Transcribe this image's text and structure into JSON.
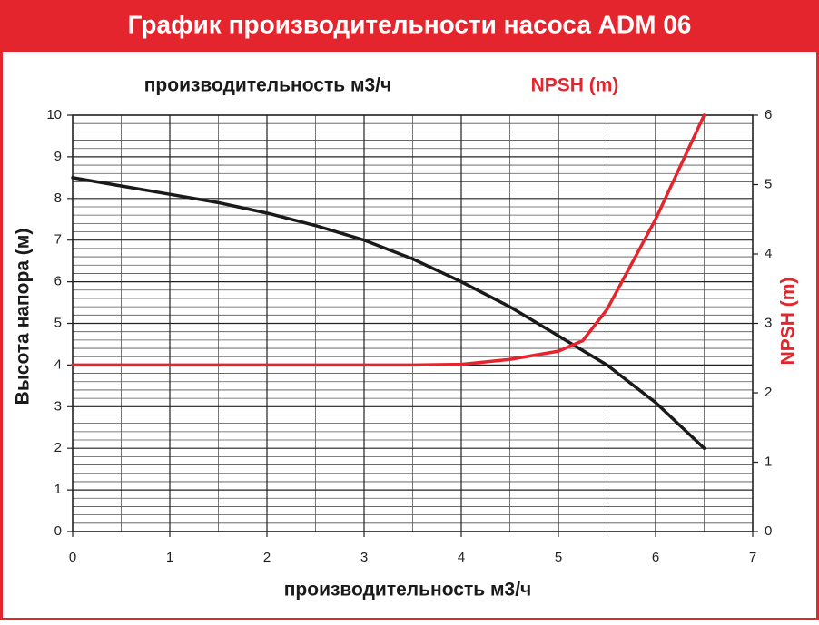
{
  "chart_data": {
    "type": "line",
    "title": "График производительности насоса ADM 06",
    "x_label": "производительность м3/ч",
    "y_label": "Высота напора (м)",
    "y2_label": "NPSH (m)",
    "xlim": [
      0,
      7
    ],
    "xticks": [
      0,
      1,
      2,
      3,
      4,
      5,
      6,
      7
    ],
    "xminorticks": [
      0.5,
      1.5,
      2.5,
      3.5,
      4.5,
      5.5,
      6.5
    ],
    "ylim": [
      0,
      10
    ],
    "yticks": [
      0,
      1,
      2,
      3,
      4,
      5,
      6,
      7,
      8,
      9,
      10
    ],
    "yminorticks": [
      0.2,
      0.4,
      0.6,
      0.8,
      1.2,
      1.4,
      1.6,
      1.8,
      2.2,
      2.4,
      2.6,
      2.8,
      3.2,
      3.4,
      3.6,
      3.8,
      4.2,
      4.4,
      4.6,
      4.8,
      5.2,
      5.4,
      5.6,
      5.8,
      6.2,
      6.4,
      6.6,
      6.8,
      7.2,
      7.4,
      7.6,
      7.8,
      8.2,
      8.4,
      8.6,
      8.8,
      9.2,
      9.4,
      9.6,
      9.8
    ],
    "y2lim": [
      0,
      6
    ],
    "y2ticks": [
      0,
      1,
      2,
      3,
      4,
      5,
      6
    ],
    "grid": true,
    "series": [
      {
        "name": "производительность м3/ч",
        "color": "#1a1a1a",
        "x": [
          0,
          0.5,
          1,
          1.5,
          2,
          2.5,
          3,
          3.5,
          4,
          4.5,
          5,
          5.5,
          6,
          6.5
        ],
        "values": [
          8.5,
          8.3,
          8.1,
          7.9,
          7.65,
          7.35,
          7.0,
          6.55,
          6.0,
          5.4,
          4.7,
          4.0,
          3.1,
          2.0
        ]
      },
      {
        "name": "NPSH (m)",
        "color": "#e5252d",
        "axis": "y2",
        "x": [
          0,
          3.5,
          4,
          4.5,
          5,
          5.25,
          5.5,
          6,
          6.5
        ],
        "values": [
          2.4,
          2.4,
          2.41,
          2.48,
          2.6,
          2.75,
          3.2,
          4.5,
          6.0
        ]
      }
    ]
  }
}
